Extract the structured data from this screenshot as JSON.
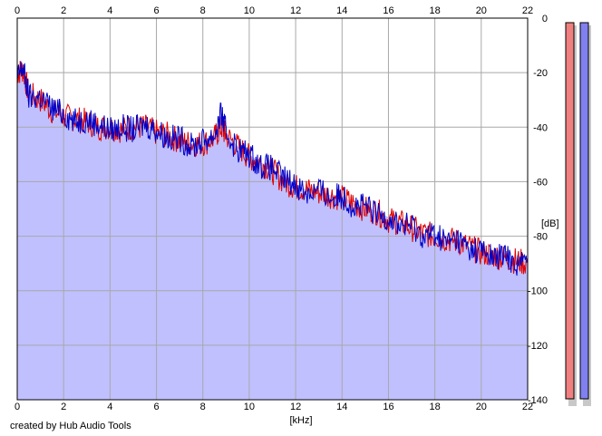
{
  "credit": "created by Hub Audio Tools",
  "colors": {
    "fill": "#c0c0ff",
    "grid": "#a8a8a8",
    "left_channel": "#e00000",
    "right_channel": "#0000c8",
    "meter_left": "#f08080",
    "meter_right": "#8080f0"
  },
  "chart_data": {
    "type": "area",
    "xlabel": "[kHz]",
    "ylabel": "[dB]",
    "xlim": [
      0,
      22
    ],
    "ylim": [
      -140,
      0
    ],
    "x_ticks": [
      "0",
      "2",
      "4",
      "6",
      "8",
      "10",
      "12",
      "14",
      "16",
      "18",
      "20",
      "22"
    ],
    "y_ticks": [
      "0",
      "-20",
      "-40",
      "-60",
      "-80",
      "-100",
      "-120",
      "-140"
    ],
    "grid": true,
    "series": [
      {
        "color": "#e00000",
        "x": [
          0,
          0.25,
          0.5,
          1,
          1.5,
          2,
          2.5,
          3,
          3.5,
          4,
          4.5,
          5,
          5.5,
          6,
          6.5,
          7,
          7.5,
          8,
          8.5,
          8.8,
          9,
          9.5,
          10,
          10.5,
          11,
          11.5,
          12,
          12.5,
          13,
          13.5,
          14,
          14.5,
          15,
          15.5,
          16,
          16.5,
          17,
          17.5,
          18,
          18.5,
          19,
          19.5,
          20,
          20.5,
          21,
          21.5,
          22
        ],
        "values": [
          -20,
          -19,
          -28,
          -30,
          -34,
          -36,
          -37,
          -38,
          -40,
          -40,
          -41,
          -40,
          -40,
          -42,
          -43,
          -45,
          -46,
          -46,
          -44,
          -40,
          -43,
          -47,
          -51,
          -53,
          -56,
          -60,
          -62,
          -63,
          -64,
          -65,
          -66,
          -68,
          -70,
          -71,
          -74,
          -75,
          -77,
          -79,
          -80,
          -81,
          -82,
          -84,
          -86,
          -87,
          -88,
          -89,
          -90
        ]
      },
      {
        "color": "#0000c8",
        "x": [
          0,
          0.25,
          0.5,
          1,
          1.5,
          2,
          2.5,
          3,
          3.5,
          4,
          4.5,
          5,
          5.5,
          6,
          6.5,
          7,
          7.5,
          8,
          8.5,
          8.8,
          9,
          9.5,
          10,
          10.5,
          11,
          11.5,
          12,
          12.5,
          13,
          13.5,
          14,
          14.5,
          15,
          15.5,
          16,
          16.5,
          17,
          17.5,
          18,
          18.5,
          19,
          19.5,
          20,
          20.5,
          21,
          21.5,
          22
        ],
        "values": [
          -22,
          -18,
          -29,
          -29,
          -33,
          -35,
          -38,
          -37,
          -39,
          -41,
          -40,
          -41,
          -39,
          -41,
          -44,
          -44,
          -47,
          -45,
          -43,
          -35,
          -42,
          -48,
          -50,
          -54,
          -55,
          -59,
          -61,
          -64,
          -63,
          -66,
          -65,
          -69,
          -69,
          -72,
          -73,
          -76,
          -76,
          -80,
          -79,
          -82,
          -81,
          -85,
          -85,
          -88,
          -87,
          -90,
          -89
        ]
      }
    ]
  }
}
